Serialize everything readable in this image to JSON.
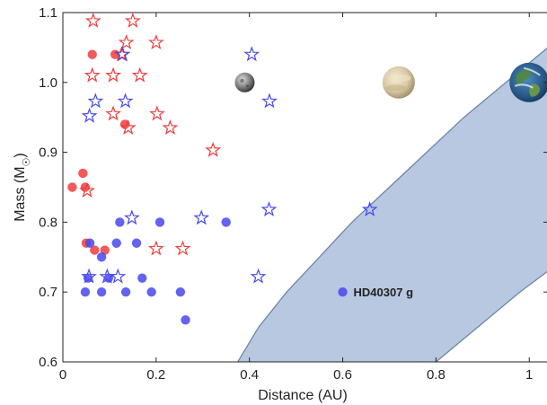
{
  "chart_data": {
    "type": "scatter",
    "title": "",
    "xlabel": "Distance (AU)",
    "ylabel_main": "Mass (M",
    "ylabel_sub": "☉",
    "ylabel_close": ")",
    "xlim": [
      0,
      1.04
    ],
    "ylim": [
      0.6,
      1.1
    ],
    "x_ticks": [
      0,
      0.2,
      0.4,
      0.6,
      0.8,
      1.0
    ],
    "x_tick_labels": [
      "0",
      "0.2",
      "0.4",
      "0.6",
      "0.8",
      "1"
    ],
    "y_ticks": [
      0.6,
      0.7,
      0.8,
      0.9,
      1.0,
      1.1
    ],
    "y_tick_labels": [
      "0.6",
      "0.7",
      "0.8",
      "0.9",
      "1.0",
      "1.1"
    ],
    "grid": false,
    "habitable_zone": {
      "color": "#b8c8e0",
      "edge_color": "#6b86ad",
      "inner_edge": [
        [
          0.375,
          0.6
        ],
        [
          0.42,
          0.65
        ],
        [
          0.48,
          0.7
        ],
        [
          0.55,
          0.75
        ],
        [
          0.62,
          0.8
        ],
        [
          0.7,
          0.85
        ],
        [
          0.78,
          0.9
        ],
        [
          0.86,
          0.95
        ],
        [
          0.95,
          1.0
        ],
        [
          1.04,
          1.05
        ]
      ],
      "outer_edge": [
        [
          0.8,
          0.6
        ],
        [
          0.89,
          0.65
        ],
        [
          0.98,
          0.7
        ],
        [
          1.04,
          0.73
        ]
      ]
    },
    "series": [
      {
        "marker": "circle",
        "color": "#f03c3c",
        "points": [
          [
            0.063,
            1.04
          ],
          [
            0.112,
            1.04
          ],
          [
            0.133,
            0.94
          ],
          [
            0.02,
            0.85
          ],
          [
            0.043,
            0.87
          ],
          [
            0.048,
            0.85
          ],
          [
            0.05,
            0.77
          ],
          [
            0.068,
            0.76
          ],
          [
            0.09,
            0.76
          ]
        ]
      },
      {
        "marker": "star",
        "color": "#f03c3c",
        "points": [
          [
            0.065,
            1.088
          ],
          [
            0.15,
            1.088
          ],
          [
            0.136,
            1.057
          ],
          [
            0.2,
            1.057
          ],
          [
            0.126,
            1.04
          ],
          [
            0.063,
            1.01
          ],
          [
            0.108,
            1.01
          ],
          [
            0.165,
            1.01
          ],
          [
            0.108,
            0.955
          ],
          [
            0.202,
            0.955
          ],
          [
            0.14,
            0.935
          ],
          [
            0.23,
            0.935
          ],
          [
            0.322,
            0.903
          ],
          [
            0.052,
            0.845
          ],
          [
            0.2,
            0.762
          ],
          [
            0.257,
            0.762
          ]
        ]
      },
      {
        "marker": "circle",
        "color": "#4848ee",
        "points": [
          [
            0.122,
            0.8
          ],
          [
            0.208,
            0.8
          ],
          [
            0.35,
            0.8
          ],
          [
            0.058,
            0.77
          ],
          [
            0.115,
            0.77
          ],
          [
            0.158,
            0.77
          ],
          [
            0.083,
            0.75
          ],
          [
            0.054,
            0.72
          ],
          [
            0.098,
            0.72
          ],
          [
            0.17,
            0.72
          ],
          [
            0.048,
            0.7
          ],
          [
            0.083,
            0.7
          ],
          [
            0.135,
            0.7
          ],
          [
            0.19,
            0.7
          ],
          [
            0.252,
            0.7
          ],
          [
            0.263,
            0.66
          ],
          [
            0.6,
            0.7
          ]
        ]
      },
      {
        "marker": "star",
        "color": "#4848ee",
        "points": [
          [
            0.405,
            1.04
          ],
          [
            0.128,
            1.04
          ],
          [
            0.07,
            0.973
          ],
          [
            0.134,
            0.973
          ],
          [
            0.443,
            0.973
          ],
          [
            0.057,
            0.952
          ],
          [
            0.148,
            0.806
          ],
          [
            0.297,
            0.806
          ],
          [
            0.442,
            0.818
          ],
          [
            0.658,
            0.818
          ],
          [
            0.056,
            0.722
          ],
          [
            0.095,
            0.722
          ],
          [
            0.118,
            0.722
          ],
          [
            0.419,
            0.722
          ]
        ]
      }
    ],
    "annotations": [
      {
        "text": "HD40307 g",
        "x": 0.6,
        "y": 0.7
      }
    ],
    "planet_icons": [
      {
        "name": "mercury",
        "x": 0.39,
        "y": 1.0
      },
      {
        "name": "venus",
        "x": 0.72,
        "y": 1.0
      },
      {
        "name": "earth",
        "x": 1.0,
        "y": 1.0
      }
    ]
  }
}
